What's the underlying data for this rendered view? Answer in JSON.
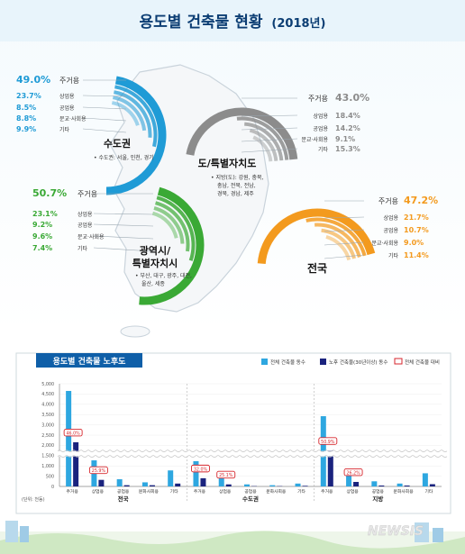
{
  "title": "용도별 건축물 현황",
  "title_year": "(2018년)",
  "colors": {
    "capital": "#1f9bd6",
    "provinces": "#8c8c8c",
    "metro": "#3aa935",
    "national": "#f39a1e",
    "bar_total": "#2ea7e0",
    "bar_old": "#1a237e",
    "label_red": "#d7262c"
  },
  "regions": {
    "capital": {
      "name": "수도권",
      "note": "• 수도권: 서울, 인천, 경기",
      "items": [
        {
          "label": "주거용",
          "value": "49.0%"
        },
        {
          "label": "상업용",
          "value": "23.7%"
        },
        {
          "label": "공업용",
          "value": "8.5%"
        },
        {
          "label": "문교·사회용",
          "value": "8.8%"
        },
        {
          "label": "기타",
          "value": "9.9%"
        }
      ]
    },
    "provinces": {
      "name": "도/특별자치도",
      "note_lines": [
        "• 지방(도): 강원, 충북,",
        "충남, 전북, 전남,",
        "경북, 경남, 제주"
      ],
      "items": [
        {
          "label": "주거용",
          "value": "43.0%"
        },
        {
          "label": "상업용",
          "value": "18.4%"
        },
        {
          "label": "공업용",
          "value": "14.2%"
        },
        {
          "label": "문교·사회용",
          "value": "9.1%"
        },
        {
          "label": "기타",
          "value": "15.3%"
        }
      ]
    },
    "metro": {
      "name_lines": [
        "광역시/",
        "특별자치시"
      ],
      "note_lines": [
        "• 부산, 대구, 광주, 대전,",
        "울산, 세종"
      ],
      "items": [
        {
          "label": "주거용",
          "value": "50.7%"
        },
        {
          "label": "상업용",
          "value": "23.1%"
        },
        {
          "label": "공업용",
          "value": "9.2%"
        },
        {
          "label": "문교·사회용",
          "value": "9.6%"
        },
        {
          "label": "기타",
          "value": "7.4%"
        }
      ]
    },
    "national": {
      "name": "전국",
      "items": [
        {
          "label": "주거용",
          "value": "47.2%"
        },
        {
          "label": "상업용",
          "value": "21.7%"
        },
        {
          "label": "공업용",
          "value": "10.7%"
        },
        {
          "label": "문교·사회용",
          "value": "9.0%"
        },
        {
          "label": "기타",
          "value": "11.4%"
        }
      ]
    }
  },
  "chart_data": {
    "type": "bar",
    "title": "용도별 건축물 노후도",
    "unit": "(단위: 천동)",
    "legend": [
      "전체 건축물 동수",
      "노후 건축물(30년이상) 동수",
      "전체 건축물 대비"
    ],
    "yticks": [
      "5,000",
      "4,500",
      "4,000",
      "3,500",
      "3,000",
      "2,500",
      "2,000",
      "1,500",
      "1,000",
      "500",
      "0"
    ],
    "ylim": [
      0,
      5000
    ],
    "groups": [
      {
        "name": "전국",
        "categories": [
          "주거용",
          "상업용",
          "공업용",
          "문화사회용",
          "기타"
        ],
        "total": [
          4650,
          1270,
          350,
          200,
          780
        ],
        "old": [
          2150,
          320,
          60,
          60,
          140
        ],
        "labels": [
          "46.0%",
          "25.9%",
          "",
          "",
          ""
        ]
      },
      {
        "name": "수도권",
        "categories": [
          "주거용",
          "상업용",
          "공업용",
          "문화사회용",
          "기타"
        ],
        "total": [
          1230,
          420,
          100,
          60,
          140
        ],
        "old": [
          400,
          100,
          15,
          15,
          30
        ],
        "labels": [
          "32.0%",
          "25.1%",
          "",
          "",
          ""
        ]
      },
      {
        "name": "지방",
        "categories": [
          "주거용",
          "상업용",
          "공업용",
          "문화사회용",
          "기타"
        ],
        "total": [
          3420,
          850,
          250,
          140,
          640
        ],
        "old": [
          1740,
          220,
          45,
          45,
          110
        ],
        "labels": [
          "50.9%",
          "26.2%",
          "",
          "",
          ""
        ]
      }
    ]
  }
}
